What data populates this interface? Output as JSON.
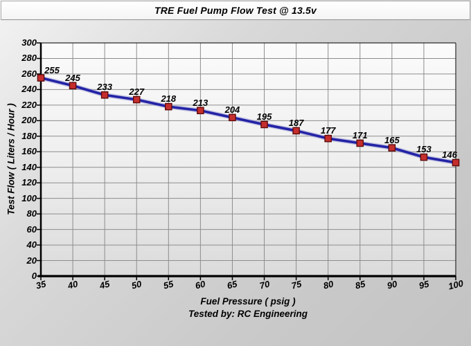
{
  "chart_data": {
    "type": "line",
    "title": "TRE Fuel Pump Flow Test @ 13.5v",
    "xlabel": "Fuel Pressure ( psig )",
    "ylabel": "Test Flow ( Liters / Hour )",
    "footer": "Tested by: RC Engineering",
    "x": [
      35,
      40,
      45,
      50,
      55,
      60,
      65,
      70,
      75,
      80,
      85,
      90,
      95,
      100
    ],
    "values": [
      255,
      245,
      233,
      227,
      218,
      213,
      204,
      195,
      187,
      177,
      171,
      165,
      153,
      146
    ],
    "xlim": [
      35,
      100
    ],
    "ylim": [
      0,
      300
    ],
    "x_tick_step": 5,
    "y_tick_step": 20,
    "grid": true,
    "data_labels": true,
    "legend": "none",
    "colors": {
      "line": "#2323A6",
      "line_halo": "#9B9BD4",
      "marker_fill": "#C62E2E",
      "marker_border": "#5E0B0B",
      "grid": "#8C8C8C",
      "axis": "#000000",
      "plot_border": "#2A2A2A",
      "label": "#000000"
    }
  }
}
